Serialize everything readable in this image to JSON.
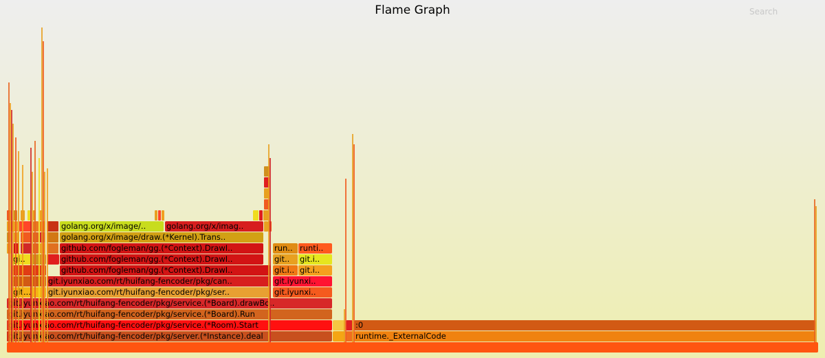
{
  "title": "Flame Graph",
  "search": {
    "label": "Search"
  },
  "frames": [
    {
      "label": "",
      "color": "#ff5510"
    },
    {
      "label": "git.iyunxiao.com/rt/huifang-fencoder/pkg/server.(*Instance).deal",
      "color": "#c8501e"
    },
    {
      "label": "",
      "color": "#f5a514"
    },
    {
      "label": "",
      "color": "#f06e1e"
    },
    {
      "label": "runtime._ExternalCode",
      "color": "#f08210"
    },
    {
      "label": "git.iyunxiao.com/rt/huifang-fencoder/pkg/service.(*Room).Start",
      "color": "#ff1010"
    },
    {
      "label": "",
      "color": "#f5c842"
    },
    {
      "label": "",
      "color": "#e02020"
    },
    {
      "label": ":0",
      "color": "#d25a14"
    },
    {
      "label": "git.iyunxiao.com/rt/huifang-fencoder/pkg/service.(*Board).Run",
      "color": "#d2641e"
    },
    {
      "label": "git.iyunxiao.com/rt/huifang-fencoder/pkg/service.(*Board).drawBo..",
      "color": "#d72828"
    },
    {
      "label": "git...",
      "color": "#f5b414"
    },
    {
      "label": "",
      "color": "#e86420"
    },
    {
      "label": "git.iyunxiao.com/rt/huifang-fencoder/pkg/ser..",
      "color": "#e8a032"
    },
    {
      "label": "git.iyunxi..",
      "color": "#f55a1e"
    },
    {
      "label": "git...",
      "color": "#f05a20"
    },
    {
      "label": "",
      "color": "#d25a14"
    },
    {
      "label": "git.iyunxiao.com/rt/huifang-fencoder/pkg/can..",
      "color": "#d71e1e"
    },
    {
      "label": "git.iyunxi..",
      "color": "#ff1432"
    },
    {
      "label": "git...",
      "color": "#ff4628"
    },
    {
      "label": "",
      "color": "#e03c14"
    },
    {
      "label": "github.com/fogleman/gg.(*Context).DrawI..",
      "color": "#d21414"
    },
    {
      "label": "git.i..",
      "color": "#f07814"
    },
    {
      "label": "git.i..",
      "color": "#f5a01e"
    },
    {
      "label": "gi..",
      "color": "#f0dc1e"
    },
    {
      "label": "",
      "color": "#d0901e"
    },
    {
      "label": "",
      "color": "#e01e1e"
    },
    {
      "label": "github.com/fogleman/gg.(*Context).DrawI..",
      "color": "#d21414"
    },
    {
      "label": "git..",
      "color": "#e8a020"
    },
    {
      "label": "git.i..",
      "color": "#e6e61e"
    },
    {
      "label": "github.com/fogleman/gg.(*Context).DrawI..",
      "color": "#d21414"
    },
    {
      "label": "run..",
      "color": "#e08c14"
    },
    {
      "label": "runti..",
      "color": "#ff5a1e"
    },
    {
      "label": "golang.org/x/image/draw.(*Kernel).Trans..",
      "color": "#d2a014"
    },
    {
      "label": "golang.org/x/image/..",
      "color": "#c8dc1e"
    },
    {
      "label": "golang.org/x/imag..",
      "color": "#d71e1e"
    },
    {
      "label": "",
      "color": "#d23214"
    },
    {
      "label": "",
      "color": "#e03c1e"
    }
  ]
}
